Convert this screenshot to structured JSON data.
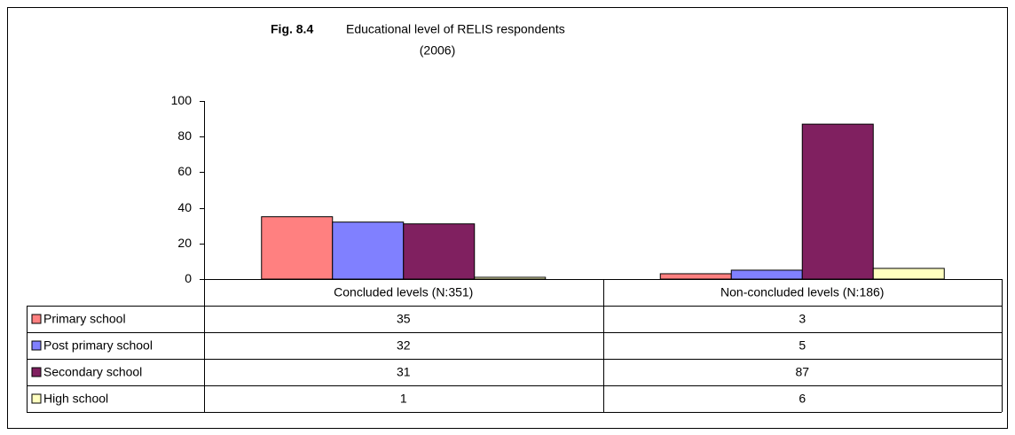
{
  "chart_data": {
    "type": "bar",
    "title_bold": "Fig. 8.4",
    "title": "Educational level of RELIS respondents",
    "subtitle": "(2006)",
    "categories": [
      "Concluded levels (N:351)",
      "Non-concluded levels (N:186)"
    ],
    "series": [
      {
        "name": "Primary school",
        "color": "#ff8080",
        "values": [
          35,
          3
        ]
      },
      {
        "name": "Post primary school",
        "color": "#8080ff",
        "values": [
          32,
          5
        ]
      },
      {
        "name": "Secondary school",
        "color": "#802060",
        "values": [
          31,
          87
        ]
      },
      {
        "name": "High school",
        "color": "#ffffc0",
        "values": [
          1,
          6
        ]
      }
    ],
    "ylim": [
      0,
      100
    ],
    "yticks": [
      0,
      20,
      40,
      60,
      80,
      100
    ],
    "grid": false
  }
}
